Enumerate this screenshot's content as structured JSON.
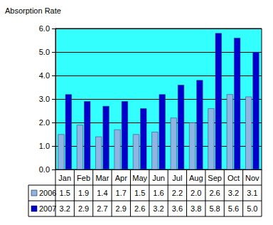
{
  "chart_data": {
    "type": "bar",
    "title": "Absorption Rate",
    "categories": [
      "Jan",
      "Feb",
      "Mar",
      "Apr",
      "May",
      "Jun",
      "Jul",
      "Aug",
      "Sep",
      "Oct",
      "Nov"
    ],
    "series": [
      {
        "name": "2006",
        "color": "#8db4e2",
        "values": [
          1.5,
          1.9,
          1.4,
          1.7,
          1.5,
          1.6,
          2.2,
          2.0,
          2.6,
          3.2,
          3.1
        ],
        "value_labels": [
          "1.5",
          "1.9",
          "1.4",
          "1.7",
          "1.5",
          "1.6",
          "2.2",
          "2.0",
          "2.6",
          "3.2",
          "3.1"
        ]
      },
      {
        "name": "2007",
        "color": "#0000cc",
        "values": [
          3.2,
          2.9,
          2.7,
          2.9,
          2.6,
          3.2,
          3.6,
          3.8,
          5.8,
          5.6,
          5.0
        ],
        "value_labels": [
          "3.2",
          "2.9",
          "2.7",
          "2.9",
          "2.6",
          "3.2",
          "3.6",
          "3.8",
          "5.8",
          "5.6",
          "5.0"
        ]
      }
    ],
    "ylim": [
      0,
      6
    ],
    "yticks": [
      {
        "value": 0,
        "label": "0.0"
      },
      {
        "value": 1,
        "label": "1.0"
      },
      {
        "value": 2,
        "label": "2.0"
      },
      {
        "value": 3,
        "label": "3.0"
      },
      {
        "value": 4,
        "label": "4.0"
      },
      {
        "value": 5,
        "label": "5.0"
      },
      {
        "value": 6,
        "label": "6.0"
      }
    ],
    "grid": true
  }
}
